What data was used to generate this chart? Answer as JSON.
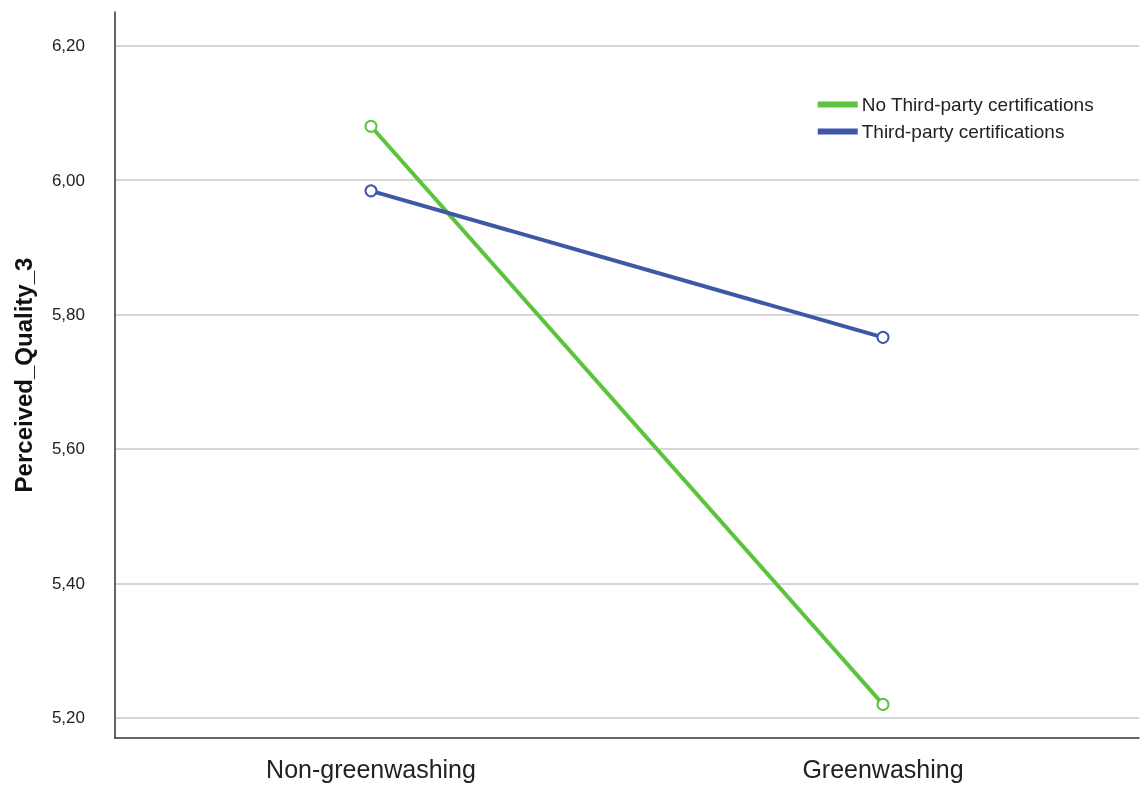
{
  "chart_data": {
    "type": "line",
    "ylabel": "Perceived_Quality_3",
    "categories": [
      "Non-greenwashing",
      "Greenwashing"
    ],
    "series": [
      {
        "name": "No Third-party certifications",
        "color": "#5cc43a",
        "values": [
          6.08,
          5.22
        ]
      },
      {
        "name": "Third-party certifications",
        "color": "#3e57a8",
        "values": [
          5.984,
          5.766
        ]
      }
    ],
    "ylim": [
      5.17,
      6.25
    ],
    "yticks": [
      {
        "value": 5.2,
        "label": "5,20"
      },
      {
        "value": 5.4,
        "label": "5,40"
      },
      {
        "value": 5.6,
        "label": "5,60"
      },
      {
        "value": 5.8,
        "label": "5,80"
      },
      {
        "value": 6.0,
        "label": "6,00"
      },
      {
        "value": 6.2,
        "label": "6,20"
      }
    ],
    "grid": "y",
    "legend": "top right",
    "marker": "circle",
    "line_style": "solid"
  }
}
